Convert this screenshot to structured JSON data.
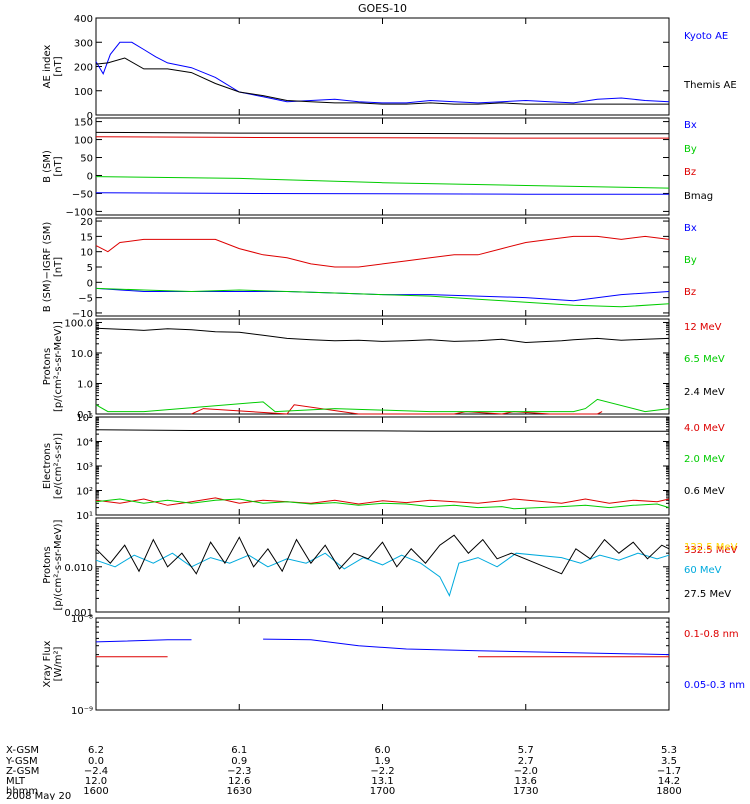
{
  "title": "GOES-10",
  "date_line": "2008 May 20",
  "colors": {
    "black": "#000000",
    "blue": "#0000ff",
    "red": "#dd0000",
    "green": "#00cc00",
    "cyan": "#00aadd",
    "gold": "#ffd700"
  },
  "chart_data": [
    {
      "type": "line",
      "ylabel": "AE index\n[nT]",
      "ylim": [
        0,
        400
      ],
      "yscale": "linear",
      "yticks": [
        0,
        100,
        200,
        300,
        400
      ],
      "ytick_labels": [
        "0",
        "100",
        "200",
        "300",
        "400"
      ],
      "series": [
        {
          "name": "Kyoto AE",
          "color": "blue",
          "x": [
            0,
            3,
            6,
            10,
            15,
            20,
            25,
            30,
            40,
            50,
            60,
            70,
            80,
            90,
            100,
            110,
            120,
            130,
            140,
            150,
            160,
            170,
            180,
            190,
            200,
            210,
            220,
            230,
            240
          ],
          "y": [
            220,
            170,
            250,
            300,
            300,
            270,
            240,
            215,
            195,
            155,
            95,
            75,
            55,
            60,
            65,
            55,
            50,
            50,
            60,
            55,
            50,
            55,
            60,
            55,
            50,
            65,
            70,
            60,
            55
          ]
        },
        {
          "name": "Themis AE",
          "color": "black",
          "x": [
            0,
            5,
            12,
            20,
            30,
            40,
            50,
            60,
            70,
            80,
            90,
            100,
            110,
            120,
            130,
            140,
            150,
            160,
            170,
            180,
            190,
            200,
            210,
            220,
            230,
            240
          ],
          "y": [
            210,
            215,
            235,
            190,
            190,
            175,
            130,
            95,
            80,
            60,
            55,
            50,
            50,
            45,
            45,
            50,
            45,
            45,
            50,
            45,
            45,
            45,
            45,
            45,
            45,
            45
          ]
        }
      ]
    },
    {
      "type": "line",
      "ylabel": "B (SM)\n[nT]",
      "ylim": [
        -110,
        160
      ],
      "yscale": "linear",
      "yticks": [
        -100,
        -50,
        0,
        50,
        100,
        150
      ],
      "ytick_labels": [
        "−100",
        "−50",
        "0",
        "50",
        "100",
        "150"
      ],
      "series": [
        {
          "name": "Bx",
          "color": "blue",
          "x": [
            0,
            60,
            120,
            180,
            240
          ],
          "y": [
            -48,
            -50,
            -51,
            -52,
            -52
          ]
        },
        {
          "name": "By",
          "color": "green",
          "x": [
            0,
            60,
            120,
            180,
            240
          ],
          "y": [
            -3,
            -8,
            -20,
            -28,
            -35
          ]
        },
        {
          "name": "Bz",
          "color": "red",
          "x": [
            0,
            60,
            120,
            180,
            240
          ],
          "y": [
            108,
            106,
            105,
            104,
            104
          ]
        },
        {
          "name": "Bmag",
          "color": "black",
          "x": [
            0,
            60,
            120,
            180,
            240
          ],
          "y": [
            120,
            118,
            117,
            116,
            116
          ]
        }
      ]
    },
    {
      "type": "line",
      "ylabel": "B (SM)−IGRF (SM)\n[nT]",
      "ylim": [
        -11,
        21
      ],
      "yscale": "linear",
      "yticks": [
        -10,
        -5,
        0,
        5,
        10,
        15,
        20
      ],
      "ytick_labels": [
        "−10",
        "−5",
        "0",
        "5",
        "10",
        "15",
        "20"
      ],
      "series": [
        {
          "name": "Bx",
          "color": "blue",
          "x": [
            0,
            20,
            40,
            60,
            80,
            100,
            120,
            140,
            160,
            180,
            200,
            220,
            240
          ],
          "y": [
            -2,
            -3,
            -3,
            -3,
            -3,
            -3.5,
            -4,
            -4,
            -4.5,
            -5,
            -6,
            -4,
            -3
          ]
        },
        {
          "name": "By",
          "color": "green",
          "x": [
            0,
            20,
            40,
            60,
            80,
            100,
            120,
            140,
            160,
            180,
            200,
            220,
            240
          ],
          "y": [
            -2,
            -2.5,
            -3,
            -2.5,
            -3,
            -3.5,
            -4,
            -4.5,
            -5.5,
            -6.5,
            -7.5,
            -8,
            -7
          ]
        },
        {
          "name": "Bz",
          "color": "red",
          "x": [
            0,
            5,
            10,
            20,
            30,
            40,
            50,
            60,
            70,
            80,
            90,
            100,
            110,
            120,
            130,
            140,
            150,
            160,
            170,
            180,
            190,
            200,
            210,
            220,
            230,
            240
          ],
          "y": [
            12,
            10,
            13,
            14,
            14,
            14,
            14,
            11,
            9,
            8,
            6,
            5,
            5,
            6,
            7,
            8,
            9,
            9,
            11,
            13,
            14,
            15,
            15,
            14,
            15,
            14
          ]
        }
      ]
    },
    {
      "type": "line",
      "ylabel": "Protons\n[p/(cm²-s-sr-MeV)]",
      "ylim": [
        0.1,
        130
      ],
      "yscale": "log",
      "yticks": [
        0.1,
        1,
        10,
        100
      ],
      "ytick_labels": [
        "0.1",
        "1.0",
        "10.0",
        "100.0"
      ],
      "series": [
        {
          "name": "12 MeV",
          "color": "red",
          "x": [
            40,
            45,
            80,
            83,
            110,
            120,
            150,
            155,
            170,
            175,
            190,
            210,
            212
          ],
          "y": [
            0.1,
            0.15,
            0.1,
            0.2,
            0.1,
            0.1,
            0.1,
            0.12,
            0.1,
            0.12,
            0.1,
            0.1,
            0.12
          ]
        },
        {
          "name": "6.5 MeV",
          "color": "green",
          "x": [
            0,
            5,
            10,
            20,
            70,
            75,
            100,
            140,
            200,
            205,
            210,
            230,
            240
          ],
          "y": [
            0.2,
            0.12,
            0.12,
            0.12,
            0.25,
            0.12,
            0.15,
            0.12,
            0.12,
            0.15,
            0.3,
            0.12,
            0.15
          ]
        },
        {
          "name": "2.4 MeV",
          "color": "black",
          "x": [
            0,
            10,
            20,
            30,
            40,
            50,
            60,
            70,
            80,
            90,
            100,
            110,
            120,
            130,
            140,
            150,
            160,
            170,
            180,
            195,
            200,
            210,
            220,
            230,
            240
          ],
          "y": [
            65,
            60,
            55,
            62,
            58,
            50,
            48,
            38,
            30,
            27,
            25,
            26,
            24,
            25,
            27,
            24,
            25,
            28,
            22,
            25,
            27,
            30,
            26,
            28,
            30
          ]
        }
      ]
    },
    {
      "type": "line",
      "ylabel": "Electrons\n[e/(cm²-s-sr)]",
      "ylim": [
        10,
        100000
      ],
      "yscale": "log",
      "yticks": [
        10,
        100,
        1000,
        10000,
        100000
      ],
      "ytick_labels": [
        "10¹",
        "10²",
        "10³",
        "10⁴",
        "10⁵"
      ],
      "series": [
        {
          "name": "4.0 MeV",
          "color": "red",
          "x": [
            0,
            10,
            20,
            30,
            40,
            50,
            60,
            70,
            80,
            90,
            100,
            110,
            120,
            130,
            140,
            150,
            160,
            170,
            175,
            195,
            205,
            215,
            225,
            235,
            240
          ],
          "y": [
            40,
            30,
            45,
            25,
            35,
            50,
            30,
            40,
            35,
            30,
            40,
            28,
            38,
            32,
            40,
            35,
            30,
            38,
            45,
            30,
            45,
            30,
            40,
            35,
            45
          ]
        },
        {
          "name": "2.0 MeV",
          "color": "green",
          "x": [
            0,
            10,
            20,
            30,
            40,
            50,
            60,
            70,
            80,
            90,
            100,
            110,
            120,
            130,
            140,
            150,
            160,
            170,
            175,
            195,
            205,
            215,
            225,
            235,
            240
          ],
          "y": [
            35,
            45,
            30,
            40,
            30,
            40,
            45,
            30,
            35,
            28,
            32,
            25,
            30,
            28,
            22,
            25,
            20,
            22,
            18,
            22,
            25,
            20,
            25,
            28,
            20
          ]
        },
        {
          "name": "0.6 MeV",
          "color": "black",
          "x": [
            0,
            40,
            80,
            120,
            140,
            160,
            175,
            195,
            240
          ],
          "y": [
            30000,
            28000,
            28000,
            27000,
            26000,
            26000,
            26000,
            26000,
            26000
          ]
        }
      ]
    },
    {
      "type": "line",
      "ylabel": "Protons\n[p/(cm²-s-sr-MeV)]",
      "ylim": [
        0.001,
        0.12
      ],
      "yscale": "log",
      "yticks": [
        0.001,
        0.01
      ],
      "ytick_labels": [
        "0.001",
        "0.010"
      ],
      "series": [
        {
          "name": "332.5 MeV",
          "color": "red",
          "x": [],
          "y": []
        },
        {
          "name": "122.5 MeV",
          "color": "gold",
          "x": [],
          "y": []
        },
        {
          "name": "60 MeV",
          "color": "cyan",
          "x": [
            0,
            8,
            16,
            24,
            32,
            40,
            48,
            56,
            64,
            72,
            80,
            88,
            96,
            104,
            112,
            120,
            128,
            136,
            144,
            148,
            152,
            160,
            168,
            176,
            195,
            203,
            211,
            219,
            227,
            235,
            240
          ],
          "y": [
            0.014,
            0.01,
            0.018,
            0.012,
            0.02,
            0.01,
            0.016,
            0.012,
            0.018,
            0.01,
            0.015,
            0.012,
            0.02,
            0.009,
            0.016,
            0.011,
            0.018,
            0.012,
            0.006,
            0.0023,
            0.012,
            0.016,
            0.01,
            0.02,
            0.016,
            0.012,
            0.018,
            0.014,
            0.02,
            0.015,
            0.018
          ]
        },
        {
          "name": "27.5 MeV",
          "color": "black",
          "x": [
            0,
            6,
            12,
            18,
            24,
            30,
            36,
            42,
            48,
            54,
            60,
            66,
            72,
            78,
            84,
            90,
            96,
            102,
            108,
            114,
            120,
            126,
            132,
            138,
            144,
            150,
            156,
            162,
            168,
            174,
            195,
            201,
            207,
            213,
            219,
            225,
            231,
            237,
            240
          ],
          "y": [
            0.025,
            0.012,
            0.03,
            0.008,
            0.04,
            0.01,
            0.02,
            0.007,
            0.035,
            0.012,
            0.045,
            0.01,
            0.025,
            0.008,
            0.04,
            0.012,
            0.03,
            0.009,
            0.02,
            0.015,
            0.035,
            0.01,
            0.025,
            0.012,
            0.03,
            0.05,
            0.02,
            0.04,
            0.015,
            0.02,
            0.007,
            0.025,
            0.015,
            0.04,
            0.02,
            0.035,
            0.015,
            0.03,
            0.025
          ]
        }
      ]
    },
    {
      "type": "line",
      "ylabel": "Xray Flux\n[W/m²]",
      "ylim": [
        1e-09,
        1e-08
      ],
      "yscale": "log",
      "yticks": [
        1e-09,
        1e-08
      ],
      "ytick_labels": [
        "10⁻⁹",
        "10⁻⁸"
      ],
      "series": [
        {
          "name": "0.1-0.8 nm",
          "color": "red",
          "x": [
            0,
            30,
            34,
            160,
            240
          ],
          "y": [
            3.8e-09,
            3.8e-09,
            null,
            3.8e-09,
            3.8e-09
          ]
        },
        {
          "name": "0.05-0.3 nm",
          "color": "blue",
          "x": [
            0,
            30,
            40,
            42,
            70,
            90,
            110,
            130,
            160,
            200,
            240
          ],
          "y": [
            5.5e-09,
            5.8e-09,
            5.8e-09,
            null,
            5.9e-09,
            5.8e-09,
            5e-09,
            4.6e-09,
            4.4e-09,
            4.2e-09,
            4e-09
          ]
        }
      ]
    }
  ],
  "xaxis": {
    "range": [
      0,
      240
    ],
    "ticks": [
      0,
      60,
      120,
      180,
      240
    ],
    "rows": [
      {
        "label": "X-GSM",
        "values": [
          "6.2",
          "6.1",
          "6.0",
          "5.7",
          "5.3"
        ]
      },
      {
        "label": "Y-GSM",
        "values": [
          "0.0",
          "0.9",
          "1.9",
          "2.7",
          "3.5"
        ]
      },
      {
        "label": "Z-GSM",
        "values": [
          "−2.4",
          "−2.3",
          "−2.2",
          "−2.0",
          "−1.7"
        ]
      },
      {
        "label": "MLT",
        "values": [
          "12.0",
          "12.6",
          "13.1",
          "13.6",
          "14.2"
        ]
      },
      {
        "label": "hhmm",
        "values": [
          "1600",
          "1630",
          "1700",
          "1730",
          "1800"
        ]
      }
    ]
  }
}
